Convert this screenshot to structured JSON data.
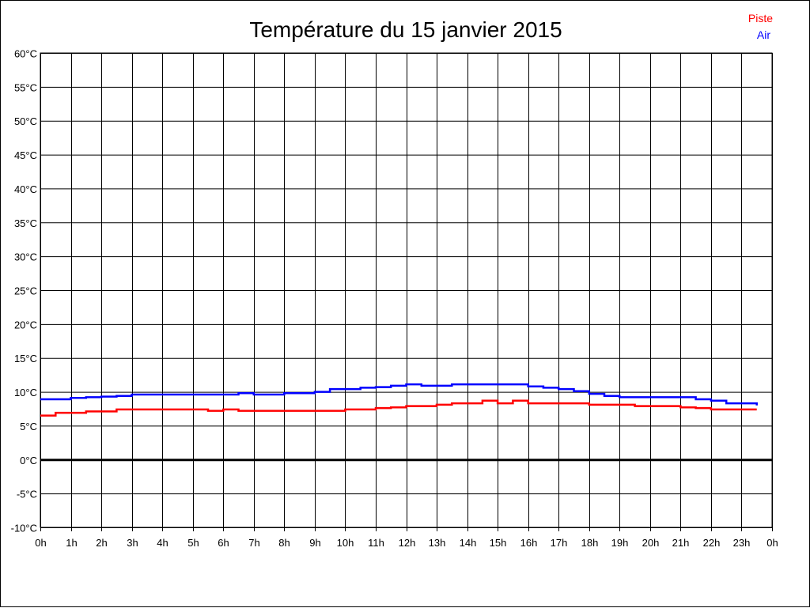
{
  "chart_data": {
    "type": "line",
    "title": "Température du 15 janvier 2015",
    "xlabel": "",
    "ylabel": "",
    "xlim": [
      0,
      24
    ],
    "ylim": [
      -10,
      60
    ],
    "grid": true,
    "legend_placement": "top-right",
    "y_ticks": [
      "60°C",
      "55°C",
      "50°C",
      "45°C",
      "40°C",
      "35°C",
      "30°C",
      "25°C",
      "20°C",
      "15°C",
      "10°C",
      "5°C",
      "0°C",
      "-5°C",
      "-10°C"
    ],
    "x_ticks": [
      "0h",
      "1h",
      "2h",
      "3h",
      "4h",
      "5h",
      "6h",
      "7h",
      "8h",
      "9h",
      "10h",
      "11h",
      "12h",
      "13h",
      "14h",
      "15h",
      "16h",
      "17h",
      "18h",
      "19h",
      "20h",
      "21h",
      "22h",
      "23h",
      "0h"
    ],
    "x": [
      0,
      0.5,
      1,
      1.5,
      2,
      2.5,
      3,
      3.5,
      4,
      4.5,
      5,
      5.5,
      6,
      6.5,
      7,
      7.5,
      8,
      8.5,
      9,
      9.5,
      10,
      10.5,
      11,
      11.5,
      12,
      12.5,
      13,
      13.5,
      14,
      14.5,
      15,
      15.5,
      16,
      16.5,
      17,
      17.5,
      18,
      18.5,
      19,
      19.5,
      20,
      20.5,
      21,
      21.5,
      22,
      22.5,
      23,
      23.5
    ],
    "series": [
      {
        "name": "Piste",
        "color": "#ff0000",
        "values": [
          6.5,
          6.9,
          6.9,
          7.1,
          7.1,
          7.4,
          7.4,
          7.4,
          7.4,
          7.4,
          7.4,
          7.2,
          7.4,
          7.2,
          7.2,
          7.2,
          7.2,
          7.2,
          7.2,
          7.2,
          7.4,
          7.4,
          7.6,
          7.7,
          7.9,
          7.9,
          8.1,
          8.3,
          8.3,
          8.7,
          8.3,
          8.7,
          8.3,
          8.3,
          8.3,
          8.3,
          8.1,
          8.1,
          8.1,
          7.9,
          7.9,
          7.9,
          7.7,
          7.6,
          7.4,
          7.4,
          7.4,
          7.4
        ]
      },
      {
        "name": "Air",
        "color": "#0000ff",
        "values": [
          8.9,
          8.9,
          9.1,
          9.2,
          9.3,
          9.4,
          9.6,
          9.6,
          9.6,
          9.6,
          9.6,
          9.6,
          9.6,
          9.8,
          9.6,
          9.6,
          9.8,
          9.8,
          10.0,
          10.4,
          10.4,
          10.6,
          10.7,
          10.9,
          11.1,
          10.9,
          10.9,
          11.1,
          11.1,
          11.1,
          11.1,
          11.1,
          10.8,
          10.6,
          10.4,
          10.1,
          9.7,
          9.4,
          9.2,
          9.2,
          9.2,
          9.2,
          9.2,
          8.9,
          8.7,
          8.3,
          8.3,
          8.0
        ]
      }
    ]
  }
}
